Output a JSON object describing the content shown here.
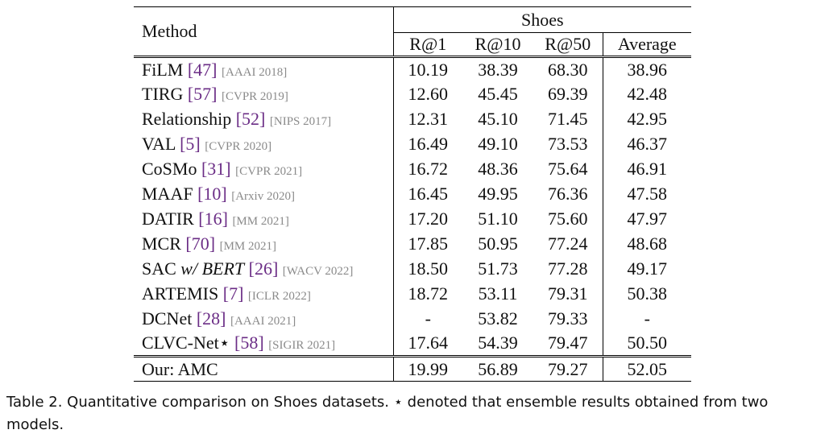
{
  "table": {
    "header": {
      "method_label": "Method",
      "dataset_label": "Shoes",
      "columns": [
        "R@1",
        "R@10",
        "R@50",
        "Average"
      ]
    },
    "rows": [
      {
        "name": "FiLM",
        "ref": "[47]",
        "venue": "[AAAI 2018]",
        "r1": "10.19",
        "r10": "38.39",
        "r50": "68.30",
        "avg": "38.96"
      },
      {
        "name": "TIRG",
        "ref": "[57]",
        "venue": "[CVPR 2019]",
        "r1": "12.60",
        "r10": "45.45",
        "r50": "69.39",
        "avg": "42.48"
      },
      {
        "name": "Relationship",
        "ref": "[52]",
        "venue": "[NIPS 2017]",
        "r1": "12.31",
        "r10": "45.10",
        "r50": "71.45",
        "avg": "42.95"
      },
      {
        "name": "VAL",
        "ref": "[5]",
        "venue": "[CVPR 2020]",
        "r1": "16.49",
        "r10": "49.10",
        "r50": "73.53",
        "avg": "46.37"
      },
      {
        "name": "CoSMo",
        "ref": "[31]",
        "venue": "[CVPR 2021]",
        "r1": "16.72",
        "r10": "48.36",
        "r50": "75.64",
        "avg": "46.91"
      },
      {
        "name": "MAAF",
        "ref": "[10]",
        "venue": "[Arxiv 2020]",
        "r1": "16.45",
        "r10": "49.95",
        "r50": "76.36",
        "avg": "47.58"
      },
      {
        "name": "DATIR",
        "ref": "[16]",
        "venue": "[MM 2021]",
        "r1": "17.20",
        "r10": "51.10",
        "r50": "75.60",
        "avg": "47.97"
      },
      {
        "name": "MCR",
        "ref": "[70]",
        "venue": "[MM 2021]",
        "r1": "17.85",
        "r10": "50.95",
        "r50": "77.24",
        "avg": "48.68"
      },
      {
        "name": "SAC",
        "name_italic": "w/ BERT",
        "ref": "[26]",
        "venue": "[WACV 2022]",
        "r1": "18.50",
        "r10": "51.73",
        "r50": "77.28",
        "avg": "49.17"
      },
      {
        "name": "ARTEMIS",
        "ref": "[7]",
        "venue": "[ICLR 2022]",
        "r1": "18.72",
        "r10": "53.11",
        "r50": "79.31",
        "avg": "50.38"
      },
      {
        "name": "DCNet",
        "ref": "[28]",
        "venue": "[AAAI 2021]",
        "r1": "-",
        "r10": "53.82",
        "r50": "79.33",
        "avg": "-"
      },
      {
        "name": "CLVC-Net⋆",
        "ref": "[58]",
        "venue": "[SIGIR 2021]",
        "r1": "17.64",
        "r10": "54.39",
        "r50": "79.47",
        "avg": "50.50"
      }
    ],
    "ours": {
      "name": "Our: AMC",
      "r1": "19.99",
      "r10": "56.89",
      "r50": "79.27",
      "avg": "52.05"
    }
  },
  "caption": "Table 2.  Quantitative comparison on Shoes datasets. ⋆ denoted that ensemble results obtained from two models."
}
